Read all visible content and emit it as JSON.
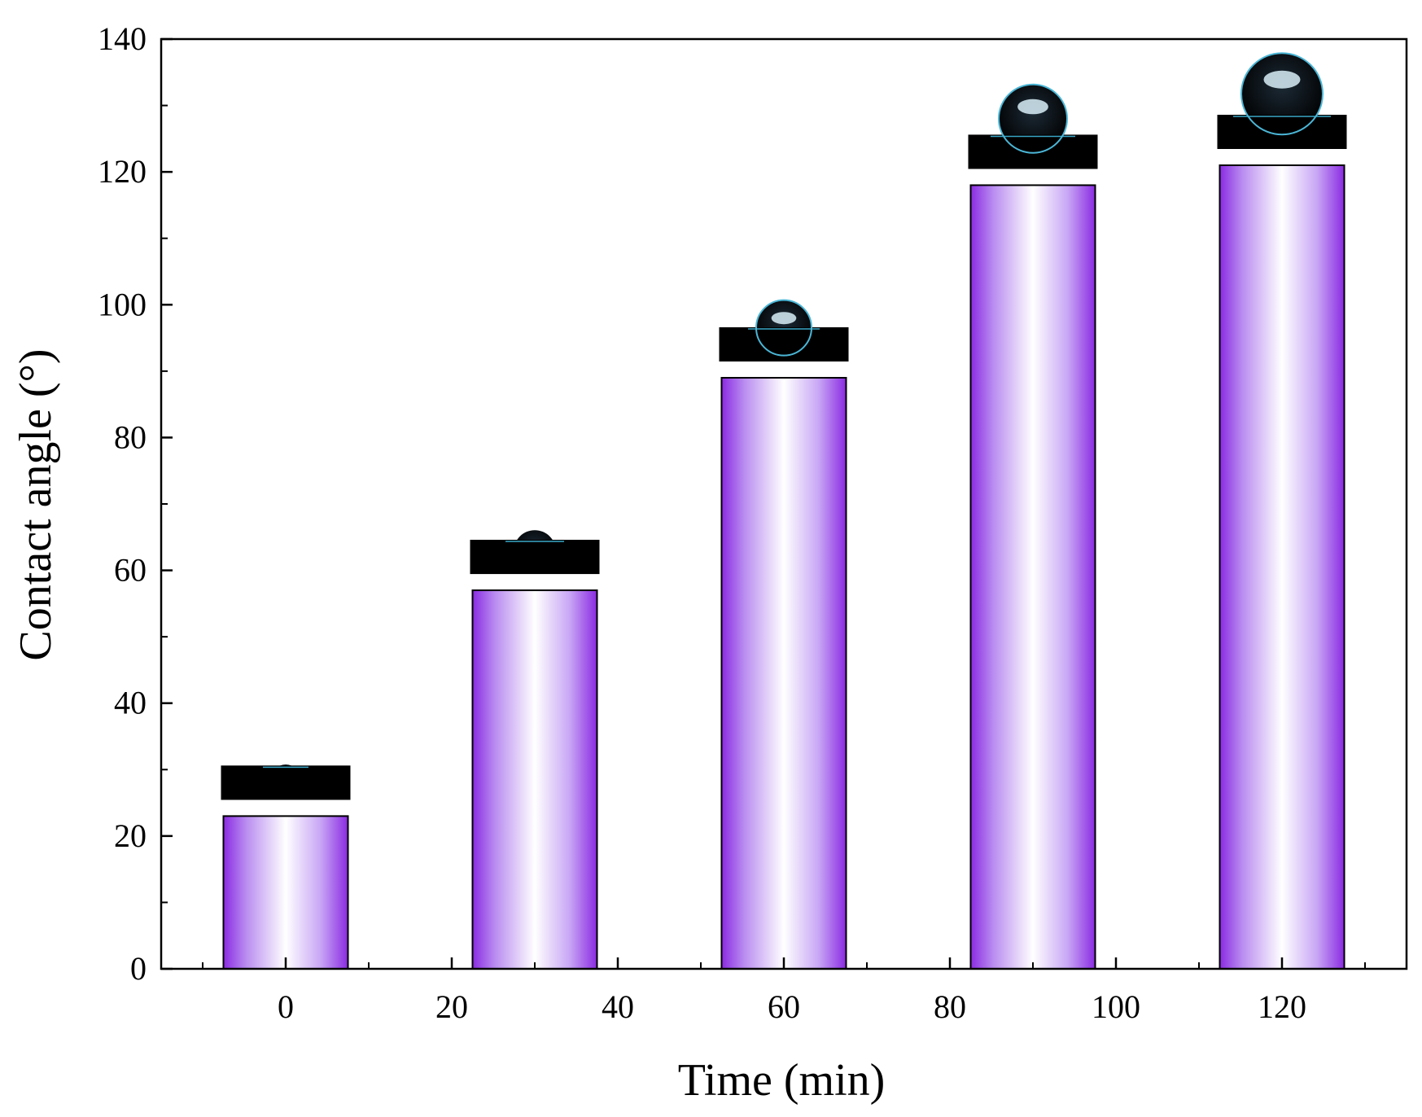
{
  "chart_data": {
    "type": "bar",
    "title": "",
    "xlabel": "Time (min)",
    "ylabel": "Contact angle (°)",
    "x": [
      0,
      30,
      60,
      90,
      120
    ],
    "values": [
      23,
      57,
      89,
      118,
      121
    ],
    "xlim": [
      -15,
      135
    ],
    "ylim": [
      0,
      140
    ],
    "x_ticks": [
      0,
      20,
      40,
      60,
      80,
      100,
      120
    ],
    "y_ticks": [
      0,
      20,
      40,
      60,
      80,
      100,
      120,
      140
    ],
    "bar_color": "#8a2be2",
    "grid": false,
    "legend": "none",
    "insets": [
      "droplet-photo",
      "droplet-photo",
      "droplet-photo",
      "droplet-photo",
      "droplet-photo"
    ]
  }
}
